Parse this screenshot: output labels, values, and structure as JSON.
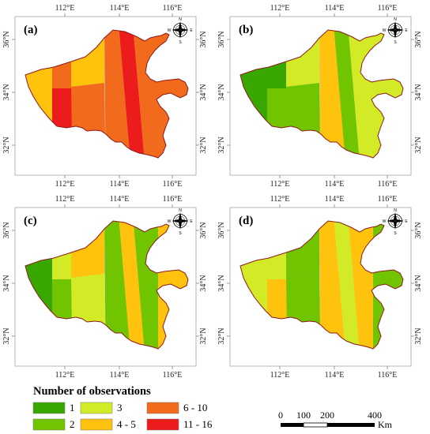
{
  "colors": {
    "1": "#38a800",
    "2": "#70c400",
    "3": "#d2eb28",
    "4-5": "#ffc20e",
    "6-10": "#f26b1d",
    "11-16": "#ed1c1c",
    "border": "#8b1a1a"
  },
  "axis_labels": {
    "lon": [
      "112°E",
      "114°E",
      "116°E"
    ],
    "lat": [
      "36°N",
      "34°N",
      "32°N"
    ]
  },
  "compass": {
    "n": "N",
    "s": "S",
    "e": "E",
    "w": "W"
  },
  "panels": [
    {
      "label": "(a)",
      "stripes": [
        "4-5",
        "6-10",
        "11-16",
        "4-5",
        "6-10",
        "6-10",
        "11-16",
        "6-10",
        "6-10"
      ]
    },
    {
      "label": "(b)",
      "stripes": [
        "1",
        "1",
        "2",
        "3",
        "2",
        "4-5",
        "2",
        "3",
        "3"
      ]
    },
    {
      "label": "(c)",
      "stripes": [
        "1",
        "3",
        "2",
        "4-5",
        "3",
        "2",
        "4-5",
        "2",
        "4-5"
      ]
    },
    {
      "label": "(d)",
      "stripes": [
        "3",
        "3",
        "4-5",
        "2",
        "2",
        "4-5",
        "3",
        "4-5",
        "2"
      ]
    }
  ],
  "legend": {
    "title": "Number of observations",
    "items": [
      {
        "label": "1",
        "color_key": "1"
      },
      {
        "label": "2",
        "color_key": "2"
      },
      {
        "label": "3",
        "color_key": "3"
      },
      {
        "label": "4 - 5",
        "color_key": "4-5"
      },
      {
        "label": "6 - 10",
        "color_key": "6-10"
      },
      {
        "label": "11 - 16",
        "color_key": "11-16"
      }
    ]
  },
  "scale_bar": {
    "ticks": [
      "0",
      "100",
      "200",
      "400"
    ],
    "unit": "Km"
  }
}
